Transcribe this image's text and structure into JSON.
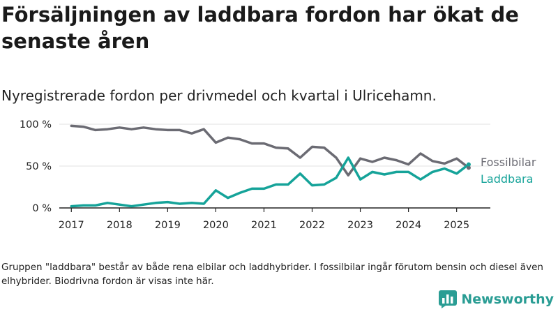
{
  "title": "Försäljningen av laddbara fordon har ökat de senaste åren",
  "subtitle": "Nyregistrerade fordon per drivmedel och kvartal i Ulricehamn.",
  "note": "Gruppen \"laddbara\" består av både rena elbilar och laddhybrider. I fossilbilar ingår förutom bensin och diesel även elhybrider. Biodrivna fordon är visas inte här.",
  "brand": {
    "label": "Newsworthy",
    "icon": "bar-chart-logo-icon",
    "color": "#2a9d94"
  },
  "chart_data": {
    "type": "line",
    "x": [
      2017.0,
      2017.25,
      2017.5,
      2017.75,
      2018.0,
      2018.25,
      2018.5,
      2018.75,
      2019.0,
      2019.25,
      2019.5,
      2019.75,
      2020.0,
      2020.25,
      2020.5,
      2020.75,
      2021.0,
      2021.25,
      2021.5,
      2021.75,
      2022.0,
      2022.25,
      2022.5,
      2022.75,
      2023.0,
      2023.25,
      2023.5,
      2023.75,
      2024.0,
      2024.25,
      2024.5,
      2024.75,
      2025.0,
      2025.25
    ],
    "x_ticks": [
      2017,
      2018,
      2019,
      2020,
      2021,
      2022,
      2023,
      2024,
      2025
    ],
    "x_tick_labels": [
      "2017",
      "2018",
      "2019",
      "2020",
      "2021",
      "2022",
      "2023",
      "2024",
      "2025"
    ],
    "xlim": [
      2016.75,
      2025.7
    ],
    "ylim": [
      0,
      100
    ],
    "y_ticks": [
      0,
      50,
      100
    ],
    "y_tick_labels": [
      "0 %",
      "50 %",
      "100 %"
    ],
    "grid": "horizontal",
    "series": [
      {
        "name": "Fossilbilar",
        "color": "#6b6b73",
        "values": [
          98,
          97,
          93,
          94,
          96,
          94,
          96,
          94,
          93,
          93,
          89,
          94,
          78,
          84,
          82,
          77,
          77,
          72,
          71,
          60,
          73,
          72,
          60,
          39,
          59,
          55,
          60,
          57,
          52,
          65,
          56,
          53,
          59,
          48
        ]
      },
      {
        "name": "Laddbara",
        "color": "#15a399",
        "values": [
          2,
          3,
          3,
          6,
          4,
          2,
          4,
          6,
          7,
          5,
          6,
          5,
          21,
          12,
          18,
          23,
          23,
          28,
          28,
          41,
          27,
          28,
          36,
          60,
          34,
          43,
          40,
          43,
          43,
          34,
          43,
          47,
          41,
          52
        ]
      }
    ]
  }
}
